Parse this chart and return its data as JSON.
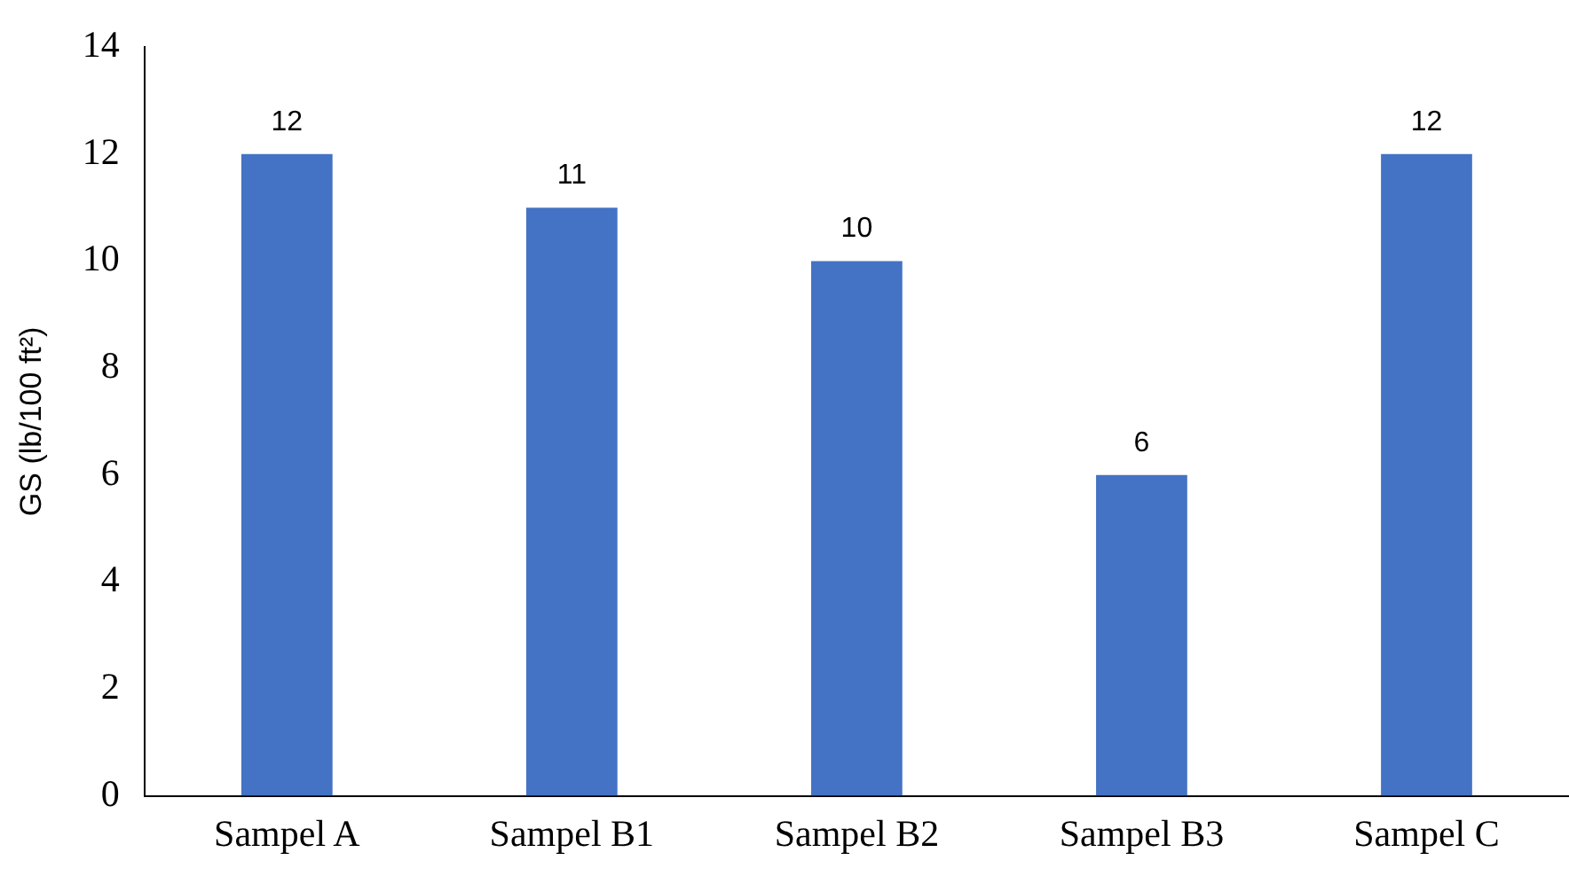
{
  "chart_data": {
    "type": "bar",
    "ylabel": "GS (lb/100 ft²)",
    "categories": [
      "Sampel A",
      "Sampel B1",
      "Sampel B2",
      "Sampel B3",
      "Sampel C"
    ],
    "values": [
      12,
      11,
      10,
      6,
      12
    ],
    "color": "#4472c4",
    "ylim": [
      0,
      14
    ],
    "yticks": [
      0,
      2,
      4,
      6,
      8,
      10,
      12,
      14
    ],
    "grid": false,
    "legend": false,
    "data_labels": true
  }
}
